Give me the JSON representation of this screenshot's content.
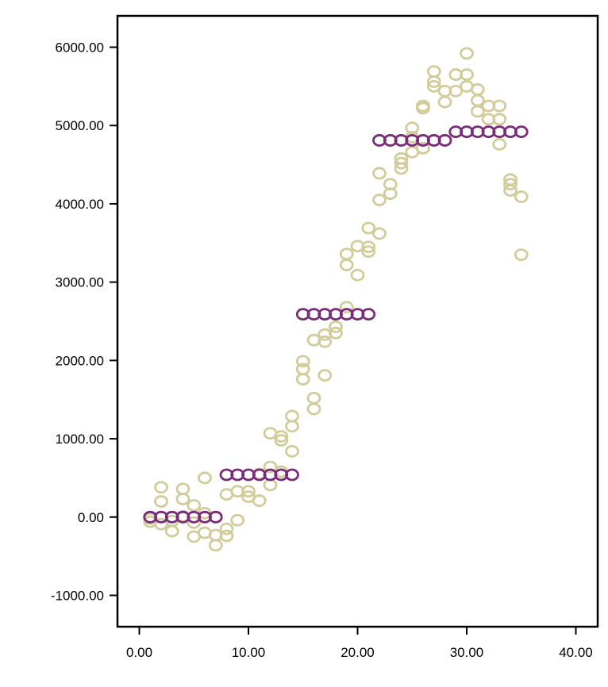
{
  "chart_data": {
    "type": "scatter",
    "title": "",
    "xlabel": "",
    "ylabel": "",
    "xlim": [
      -2,
      42
    ],
    "ylim": [
      -1400,
      6400
    ],
    "x_ticks": [
      0,
      10,
      20,
      30,
      40
    ],
    "x_tick_labels": [
      "0.00",
      "10.00",
      "20.00",
      "30.00",
      "40.00"
    ],
    "y_ticks": [
      6000,
      5000,
      4000,
      3000,
      2000,
      1000,
      0,
      -1000
    ],
    "y_tick_labels": [
      "6000.00",
      "5000.00",
      "4000.00",
      "3000.00",
      "2000.00",
      "1000.00",
      "0.00",
      "-1000.00"
    ],
    "grid": false,
    "legend": "none",
    "series": [
      {
        "color": "#d2cc9b",
        "points": [
          [
            1,
            -60
          ],
          [
            1,
            -20
          ],
          [
            2,
            380
          ],
          [
            2,
            200
          ],
          [
            2,
            -90
          ],
          [
            3,
            -180
          ],
          [
            3,
            -50
          ],
          [
            4,
            360
          ],
          [
            4,
            230
          ],
          [
            4,
            10
          ],
          [
            5,
            150
          ],
          [
            5,
            -70
          ],
          [
            5,
            -250
          ],
          [
            6,
            500
          ],
          [
            6,
            -200
          ],
          [
            6,
            50
          ],
          [
            7,
            -230
          ],
          [
            7,
            -360
          ],
          [
            8,
            290
          ],
          [
            8,
            -150
          ],
          [
            8,
            -240
          ],
          [
            9,
            330
          ],
          [
            9,
            -40
          ],
          [
            10,
            330
          ],
          [
            10,
            260
          ],
          [
            11,
            550
          ],
          [
            11,
            210
          ],
          [
            12,
            1070
          ],
          [
            12,
            640
          ],
          [
            12,
            410
          ],
          [
            13,
            1030
          ],
          [
            13,
            980
          ],
          [
            13,
            580
          ],
          [
            14,
            1290
          ],
          [
            14,
            1160
          ],
          [
            14,
            840
          ],
          [
            15,
            1990
          ],
          [
            15,
            1890
          ],
          [
            15,
            1760
          ],
          [
            16,
            2260
          ],
          [
            16,
            1520
          ],
          [
            16,
            1380
          ],
          [
            17,
            2330
          ],
          [
            17,
            2240
          ],
          [
            17,
            1810
          ],
          [
            18,
            2430
          ],
          [
            18,
            2350
          ],
          [
            19,
            2680
          ],
          [
            19,
            3360
          ],
          [
            19,
            3220
          ],
          [
            20,
            3460
          ],
          [
            20,
            3090
          ],
          [
            21,
            3690
          ],
          [
            21,
            3450
          ],
          [
            21,
            3390
          ],
          [
            22,
            4390
          ],
          [
            22,
            4050
          ],
          [
            22,
            3620
          ],
          [
            23,
            4250
          ],
          [
            23,
            4130
          ],
          [
            24,
            4580
          ],
          [
            24,
            4520
          ],
          [
            24,
            4450
          ],
          [
            25,
            4970
          ],
          [
            25,
            4850
          ],
          [
            25,
            4660
          ],
          [
            26,
            5250
          ],
          [
            26,
            5220
          ],
          [
            26,
            4710
          ],
          [
            27,
            5690
          ],
          [
            27,
            5560
          ],
          [
            27,
            5500
          ],
          [
            28,
            5440
          ],
          [
            28,
            5300
          ],
          [
            29,
            5650
          ],
          [
            29,
            5440
          ],
          [
            30,
            5920
          ],
          [
            30,
            5650
          ],
          [
            30,
            5500
          ],
          [
            31,
            5460
          ],
          [
            31,
            5320
          ],
          [
            31,
            5180
          ],
          [
            32,
            5250
          ],
          [
            32,
            5080
          ],
          [
            33,
            5250
          ],
          [
            33,
            5080
          ],
          [
            33,
            4760
          ],
          [
            34,
            4310
          ],
          [
            34,
            4250
          ],
          [
            34,
            4170
          ],
          [
            35,
            4090
          ],
          [
            35,
            3350
          ]
        ]
      },
      {
        "color": "#7a2a7a",
        "points": [
          [
            1,
            0
          ],
          [
            2,
            0
          ],
          [
            3,
            0
          ],
          [
            4,
            0
          ],
          [
            5,
            0
          ],
          [
            6,
            0
          ],
          [
            7,
            0
          ],
          [
            8,
            540
          ],
          [
            9,
            540
          ],
          [
            10,
            540
          ],
          [
            11,
            540
          ],
          [
            12,
            540
          ],
          [
            13,
            540
          ],
          [
            14,
            540
          ],
          [
            15,
            2590
          ],
          [
            16,
            2590
          ],
          [
            17,
            2590
          ],
          [
            18,
            2590
          ],
          [
            19,
            2590
          ],
          [
            20,
            2590
          ],
          [
            21,
            2590
          ],
          [
            22,
            4810
          ],
          [
            23,
            4810
          ],
          [
            24,
            4810
          ],
          [
            25,
            4810
          ],
          [
            26,
            4810
          ],
          [
            27,
            4810
          ],
          [
            28,
            4810
          ],
          [
            29,
            4920
          ],
          [
            30,
            4920
          ],
          [
            31,
            4920
          ],
          [
            32,
            4920
          ],
          [
            33,
            4920
          ],
          [
            34,
            4920
          ],
          [
            35,
            4920
          ]
        ]
      }
    ]
  }
}
